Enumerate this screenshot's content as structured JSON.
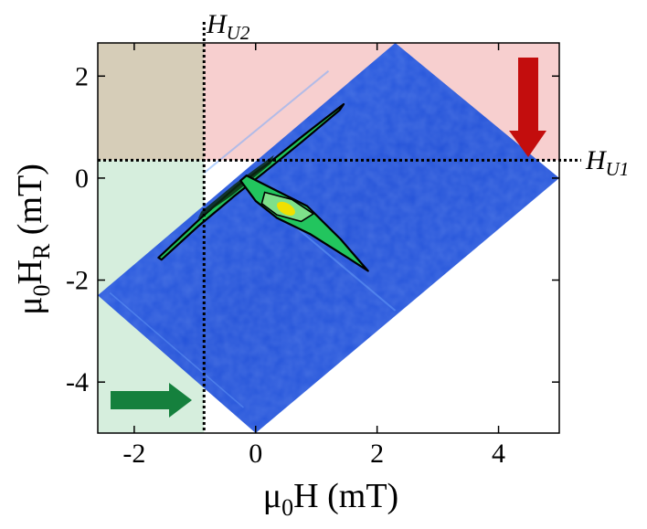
{
  "chart_data": {
    "type": "heatmap",
    "title": "",
    "xlabel": {
      "base": "μ",
      "sub": "0",
      "rest": "H (mT)"
    },
    "ylabel": {
      "base": "μ",
      "sub": "0",
      "mid": "H",
      "sub2": "R",
      "rest": " (mT)"
    },
    "xlim": [
      -2.6,
      5.0
    ],
    "ylim": [
      -5.0,
      2.65
    ],
    "xticks": [
      -2,
      0,
      2,
      4
    ],
    "yticks": [
      2,
      0,
      -2,
      -4
    ],
    "xtick_labels": [
      "-2",
      "0",
      "2",
      "4"
    ],
    "ytick_labels": [
      "2",
      "0",
      "-2",
      "-4"
    ],
    "data_region_corners": [
      [
        0.0,
        -5.0
      ],
      [
        5.0,
        0.0
      ],
      [
        2.3,
        2.65
      ],
      [
        -2.6,
        -2.3
      ]
    ],
    "reference_lines": [
      {
        "orientation": "vertical",
        "value": -0.85,
        "label_base": "H",
        "label_sub": "U2"
      },
      {
        "orientation": "horizontal",
        "value": 0.35,
        "label_base": "H",
        "label_sub": "U1"
      }
    ],
    "shaded_regions": [
      {
        "name": "top-left",
        "x": [
          -2.6,
          -0.85
        ],
        "y": [
          0.35,
          2.65
        ],
        "color": "#d6cdb8"
      },
      {
        "name": "top-right",
        "x": [
          -0.85,
          5.0
        ],
        "y": [
          0.35,
          2.65
        ],
        "color": "#f7cfcf"
      },
      {
        "name": "bottom-left",
        "x": [
          -2.6,
          -0.85
        ],
        "y": [
          -5.0,
          0.35
        ],
        "color": "#d6eedd"
      }
    ],
    "features": [
      {
        "name": "upper-ridge",
        "path": [
          [
            -1.55,
            -1.55
          ],
          [
            -0.6,
            -0.45
          ],
          [
            0.0,
            0.15
          ],
          [
            0.8,
            0.9
          ],
          [
            1.45,
            1.42
          ]
        ]
      },
      {
        "name": "lower-lobe",
        "path": [
          [
            -0.15,
            -0.1
          ],
          [
            0.5,
            -0.6
          ],
          [
            1.2,
            -1.2
          ],
          [
            1.85,
            -1.82
          ]
        ],
        "peak": [
          0.5,
          -0.6
        ]
      }
    ],
    "arrows": [
      {
        "name": "red-arrow",
        "direction": "down",
        "color": "#c30d0d"
      },
      {
        "name": "green-arrow",
        "direction": "right",
        "color": "#15803d"
      }
    ],
    "colors": {
      "background_map": "#2a5ae0",
      "ridge_fill": "#22c55e",
      "peak": "#f0e000",
      "contour": "#000000"
    }
  }
}
